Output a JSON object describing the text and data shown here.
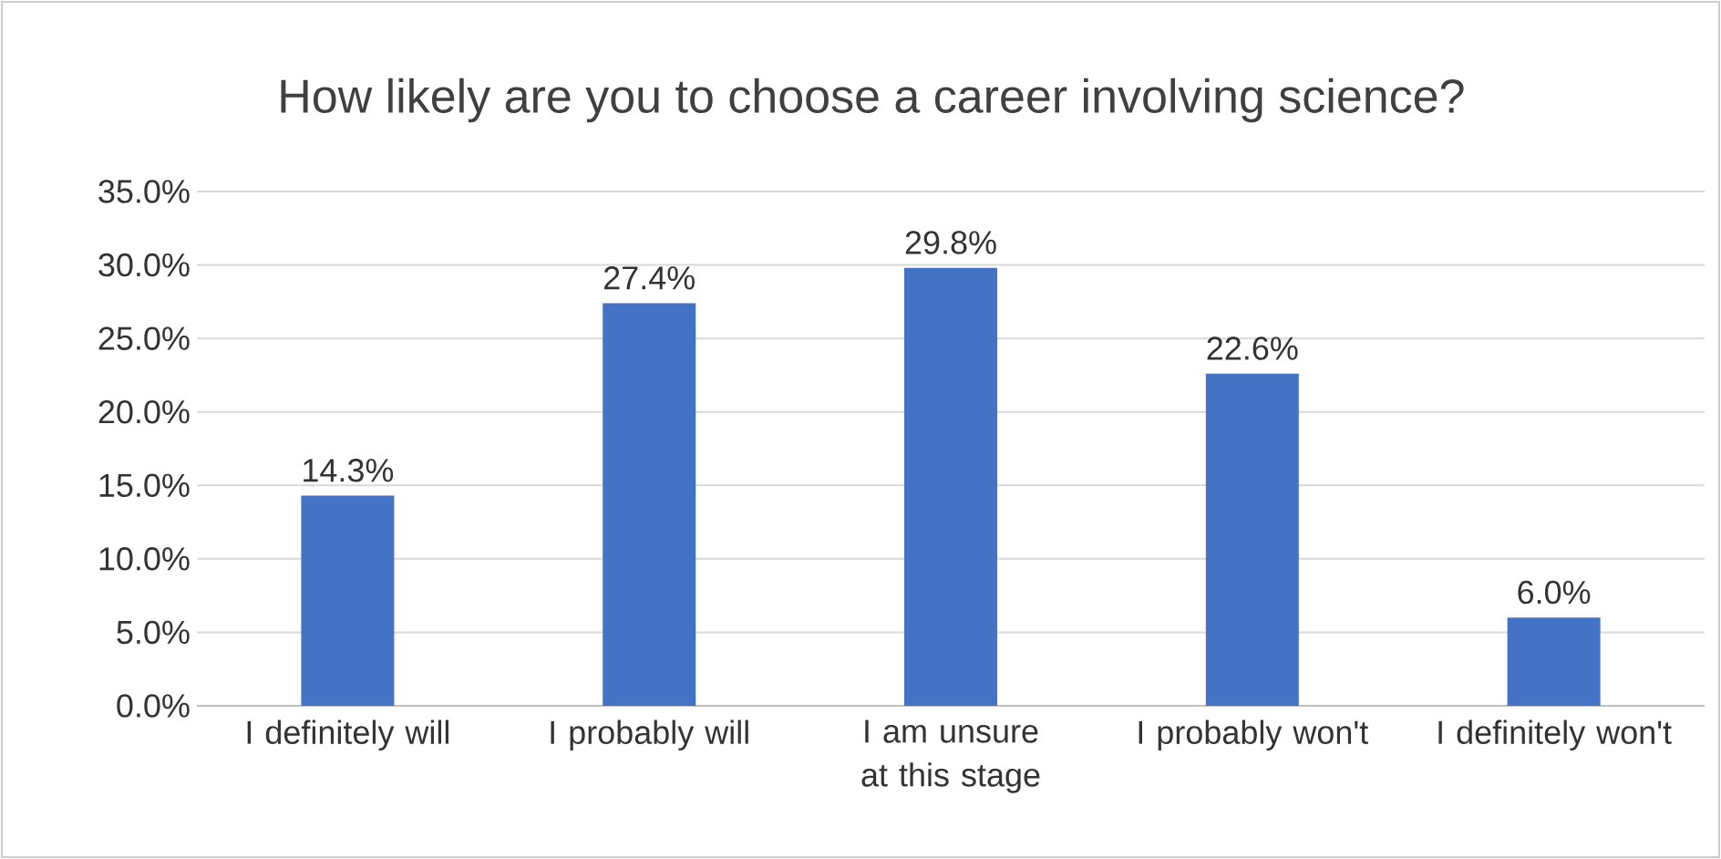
{
  "chart_data": {
    "type": "bar",
    "title": "How likely are you to choose a career involving science?",
    "categories": [
      "I definitely will",
      "I probably will",
      "I am unsure at this stage",
      "I probably won't",
      "I definitely won't"
    ],
    "values": [
      14.3,
      27.4,
      29.8,
      22.6,
      6.0
    ],
    "value_labels": [
      "14.3%",
      "27.4%",
      "29.8%",
      "22.6%",
      "6.0%"
    ],
    "color": "#4472c4",
    "ylim": [
      0,
      35
    ],
    "yticks": [
      {
        "value": 0,
        "label": "0.0%"
      },
      {
        "value": 5,
        "label": "5.0%"
      },
      {
        "value": 10,
        "label": "10.0%"
      },
      {
        "value": 15,
        "label": "15.0%"
      },
      {
        "value": 20,
        "label": "20.0%"
      },
      {
        "value": 25,
        "label": "25.0%"
      },
      {
        "value": 30,
        "label": "30.0%"
      },
      {
        "value": 35,
        "label": "35.0%"
      }
    ],
    "grid": "y"
  }
}
